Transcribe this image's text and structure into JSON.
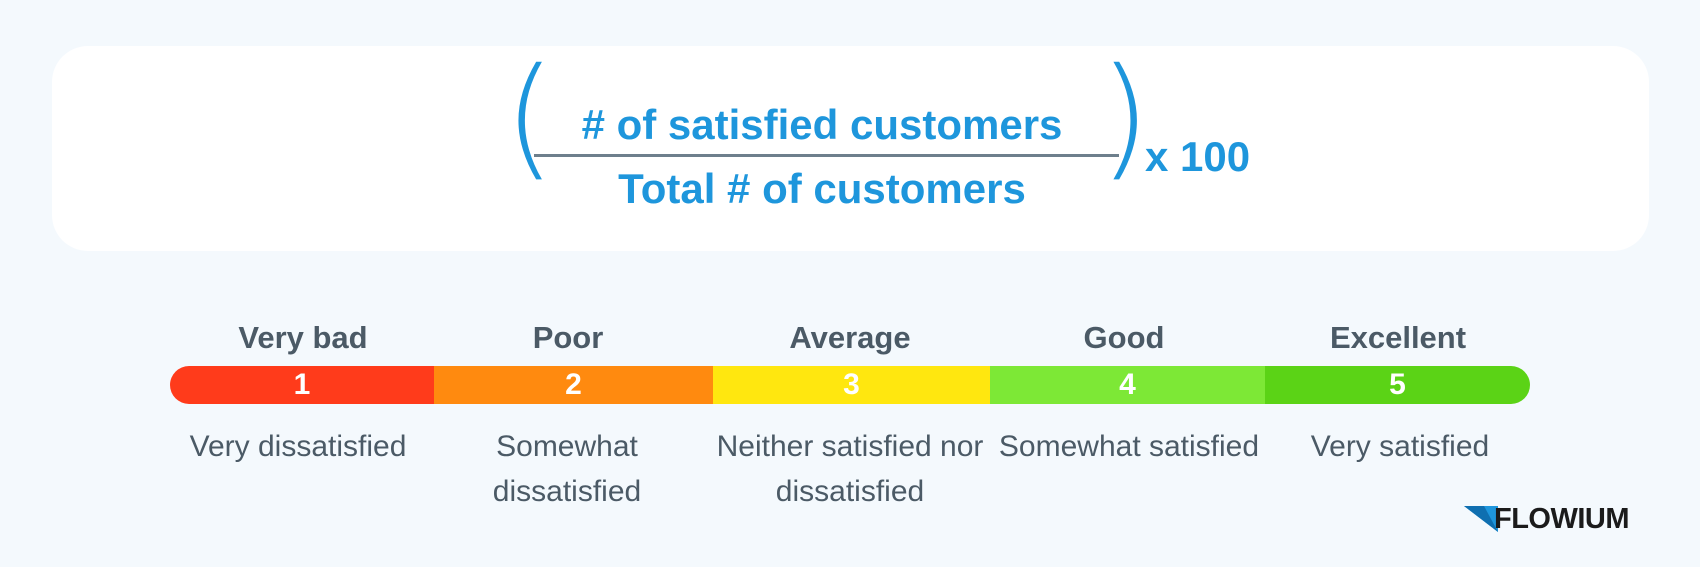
{
  "formula": {
    "numerator": "# of satisfied customers",
    "denominator": "Total # of customers",
    "multiplier": "x 100",
    "open_paren": "(",
    "close_paren": ")"
  },
  "scale": {
    "levels": [
      {
        "number": "1",
        "title": "Very bad",
        "description": "Very dissatisfied",
        "color": "#ff3b1b"
      },
      {
        "number": "2",
        "title": "Poor",
        "description": "Somewhat dissatisfied",
        "color": "#ff8a0f"
      },
      {
        "number": "3",
        "title": "Average",
        "description": "Neither satisfied nor dissatisfied",
        "color": "#ffe70f"
      },
      {
        "number": "4",
        "title": "Good",
        "description": "Somewhat satisfied",
        "color": "#7de836"
      },
      {
        "number": "5",
        "title": "Excellent",
        "description": "Very satisfied",
        "color": "#5bd316"
      }
    ]
  },
  "logo": {
    "text": "FLOWIUM",
    "icon": "flowium-logo-icon",
    "icon_color": "#1e96dc"
  },
  "colors": {
    "accent": "#1e96dc",
    "text": "#4b5a66",
    "background": "#f4f9fd"
  }
}
